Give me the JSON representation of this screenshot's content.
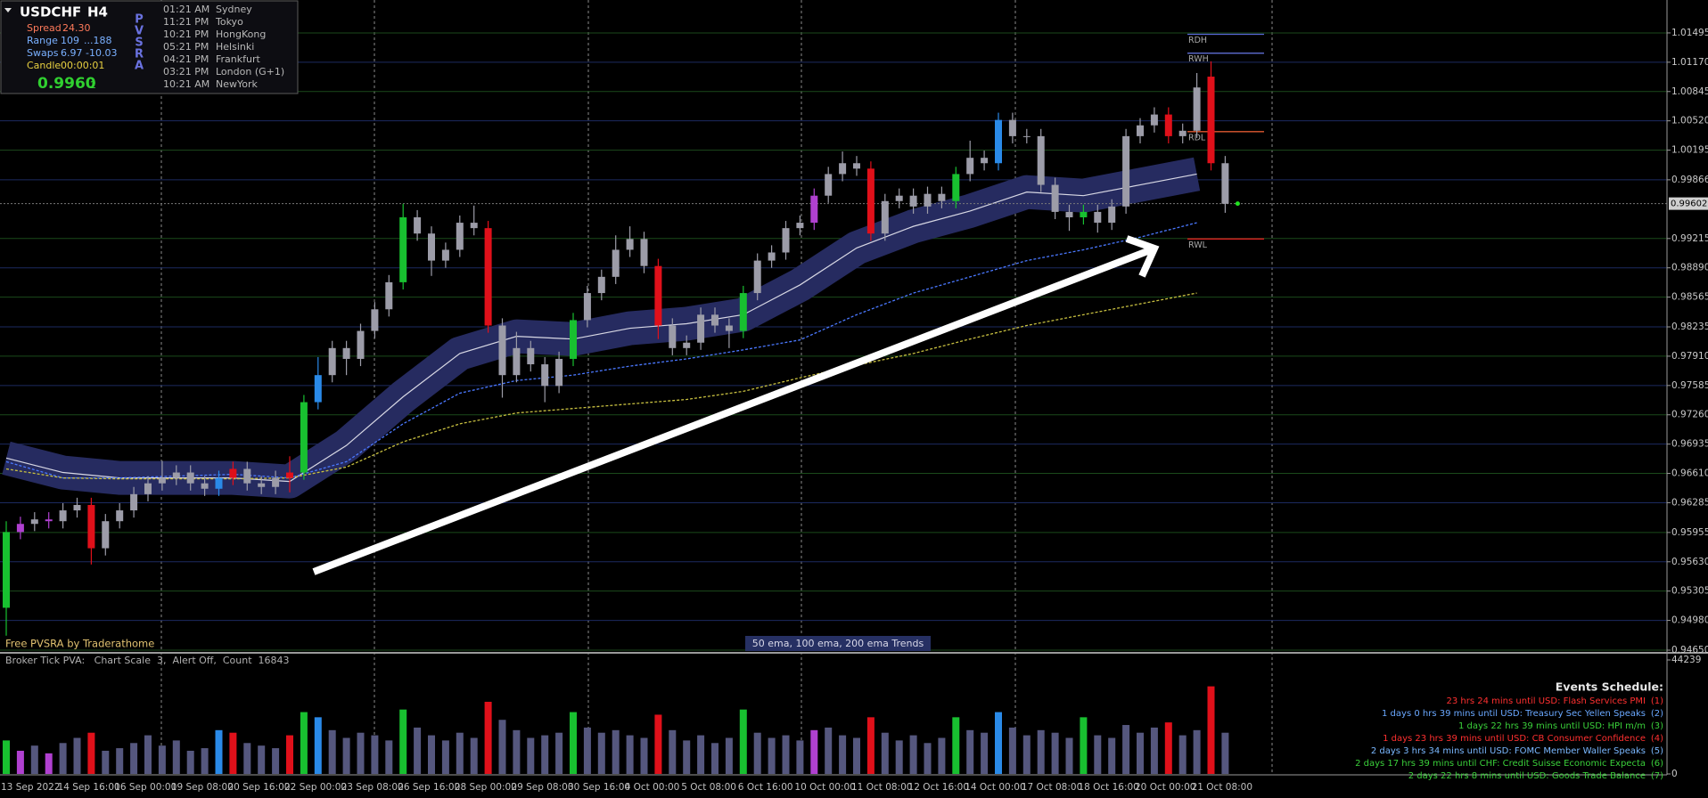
{
  "info_panel": {
    "symbol": "USDCHF",
    "timeframe": "H4",
    "spread_label": "Spread",
    "spread": "24.30",
    "range_label": "Range",
    "range": "109",
    "range_max": "...188",
    "swaps_label": "Swaps",
    "swap_long": "6.97",
    "swap_short": "-10.03",
    "candle_label": "Candle",
    "candle_timer": "00:00:01",
    "price": "0.9960",
    "price_digit": "2",
    "indicator_letters": [
      "P",
      "V",
      "S",
      "R",
      "A"
    ],
    "clocks": [
      {
        "time": "01:21 AM",
        "city": "Sydney"
      },
      {
        "time": "11:21 PM",
        "city": "Tokyo"
      },
      {
        "time": "10:21 PM",
        "city": "HongKong"
      },
      {
        "time": "05:21 PM",
        "city": "Helsinki"
      },
      {
        "time": "04:21 PM",
        "city": "Frankfurt"
      },
      {
        "time": "03:21 PM",
        "city": "London (G+1)"
      },
      {
        "time": "10:21 AM",
        "city": "NewYork"
      }
    ]
  },
  "footer": {
    "credit": "Free PVSRA by Traderathome",
    "trends_label": "50 ema, 100 ema, 200 ema Trends",
    "volume_pane_label": "Broker Tick PVA:   Chart Scale  3,  Alert Off,  Count  16843"
  },
  "events": {
    "title": "Events Schedule:",
    "items": [
      {
        "text": "23 hrs 24 mins until USD: Flash Services PMI",
        "number": "(1)",
        "color": "#ff3030"
      },
      {
        "text": "1 days 0 hrs 39 mins until USD: Treasury Sec Yellen Speaks",
        "number": "(2)",
        "color": "#6aa8ff"
      },
      {
        "text": "1 days 22 hrs 39 mins until USD: HPI m/m",
        "number": "(3)",
        "color": "#3ad03a"
      },
      {
        "text": "1 days 23 hrs 39 mins until USD: CB Consumer Confidence",
        "number": "(4)",
        "color": "#ff3030"
      },
      {
        "text": "2 days 3 hrs 34 mins until USD: FOMC Member Waller Speaks",
        "number": "(5)",
        "color": "#7ab8ff"
      },
      {
        "text": "2 days 17 hrs 39 mins until CHF: Credit Suisse Economic Expecta",
        "number": "(6)",
        "color": "#3ad03a"
      },
      {
        "text": "2 days 22 hrs 8 mins until USD: Goods Trade Balance",
        "number": "(7)",
        "color": "#3ad03a"
      }
    ]
  },
  "chart_data": {
    "type": "candlestick",
    "categories": [
      "13 Sep 2022",
      null,
      null,
      null,
      "14 Sep 16:00",
      null,
      null,
      null,
      "16 Sep 00:00",
      null,
      null,
      null,
      "19 Sep 08:00",
      null,
      null,
      null,
      "20 Sep 16:00",
      null,
      null,
      null,
      "22 Sep 00:00",
      null,
      null,
      null,
      "23 Sep 08:00",
      null,
      null,
      null,
      "26 Sep 16:00",
      null,
      null,
      null,
      "28 Sep 00:00",
      null,
      null,
      null,
      "29 Sep 08:00",
      null,
      null,
      null,
      "30 Sep 16:00",
      null,
      null,
      null,
      "4 Oct 00:00",
      null,
      null,
      null,
      "5 Oct 08:00",
      null,
      null,
      null,
      "6 Oct 16:00",
      null,
      null,
      null,
      "10 Oct 00:00",
      null,
      null,
      null,
      "11 Oct 08:00",
      null,
      null,
      null,
      "12 Oct 16:00",
      null,
      null,
      null,
      "14 Oct 00:00",
      null,
      null,
      null,
      "17 Oct 08:00",
      null,
      null,
      null,
      "18 Oct 16:00",
      null,
      null,
      null,
      "20 Oct 00:00",
      null,
      null,
      null,
      "21 Oct 08:00",
      null,
      null
    ],
    "ohlc": [
      [
        0.9512,
        0.9608,
        0.9481,
        0.9596
      ],
      [
        0.9596,
        0.9613,
        0.9588,
        0.9605
      ],
      [
        0.9605,
        0.9618,
        0.9597,
        0.961
      ],
      [
        0.961,
        0.9618,
        0.96,
        0.9608
      ],
      [
        0.9608,
        0.9628,
        0.96,
        0.962
      ],
      [
        0.962,
        0.9634,
        0.9612,
        0.9626
      ],
      [
        0.9626,
        0.9634,
        0.956,
        0.9578
      ],
      [
        0.9578,
        0.9616,
        0.957,
        0.9608
      ],
      [
        0.9608,
        0.9628,
        0.96,
        0.962
      ],
      [
        0.962,
        0.9646,
        0.9612,
        0.9638
      ],
      [
        0.9638,
        0.9658,
        0.963,
        0.965
      ],
      [
        0.965,
        0.9675,
        0.9642,
        0.9656
      ],
      [
        0.9656,
        0.967,
        0.9648,
        0.9662
      ],
      [
        0.9662,
        0.967,
        0.9642,
        0.965
      ],
      [
        0.965,
        0.9658,
        0.9636,
        0.9644
      ],
      [
        0.9644,
        0.9664,
        0.9636,
        0.9656
      ],
      [
        0.9656,
        0.9674,
        0.9648,
        0.9666
      ],
      [
        0.9666,
        0.9674,
        0.9642,
        0.965
      ],
      [
        0.965,
        0.9658,
        0.9638,
        0.9646
      ],
      [
        0.9646,
        0.9664,
        0.9638,
        0.9656
      ],
      [
        0.9656,
        0.968,
        0.964,
        0.9662
      ],
      [
        0.9662,
        0.9748,
        0.9654,
        0.974
      ],
      [
        0.974,
        0.979,
        0.9732,
        0.977
      ],
      [
        0.977,
        0.9808,
        0.9762,
        0.98
      ],
      [
        0.98,
        0.9808,
        0.977,
        0.9788
      ],
      [
        0.9788,
        0.9827,
        0.978,
        0.9819
      ],
      [
        0.9819,
        0.9851,
        0.9811,
        0.9843
      ],
      [
        0.9843,
        0.9881,
        0.9835,
        0.9873
      ],
      [
        0.9873,
        0.996,
        0.9865,
        0.9945
      ],
      [
        0.9945,
        0.9953,
        0.9919,
        0.9927
      ],
      [
        0.9927,
        0.9935,
        0.988,
        0.9897
      ],
      [
        0.9897,
        0.9917,
        0.9889,
        0.9909
      ],
      [
        0.9909,
        0.9947,
        0.9901,
        0.9939
      ],
      [
        0.9939,
        0.9958,
        0.9925,
        0.9933
      ],
      [
        0.9933,
        0.9941,
        0.9817,
        0.9825
      ],
      [
        0.9825,
        0.9833,
        0.9745,
        0.977
      ],
      [
        0.977,
        0.9818,
        0.9762,
        0.98
      ],
      [
        0.98,
        0.9808,
        0.9774,
        0.9782
      ],
      [
        0.9782,
        0.979,
        0.974,
        0.9758
      ],
      [
        0.9758,
        0.9796,
        0.975,
        0.9788
      ],
      [
        0.9788,
        0.9839,
        0.978,
        0.9831
      ],
      [
        0.9831,
        0.9869,
        0.9823,
        0.9861
      ],
      [
        0.9861,
        0.9887,
        0.9853,
        0.9879
      ],
      [
        0.9879,
        0.9925,
        0.9871,
        0.9909
      ],
      [
        0.9909,
        0.9935,
        0.9901,
        0.9921
      ],
      [
        0.9921,
        0.9929,
        0.9883,
        0.9891
      ],
      [
        0.9891,
        0.9899,
        0.981,
        0.9825
      ],
      [
        0.9825,
        0.9833,
        0.9792,
        0.98
      ],
      [
        0.98,
        0.9814,
        0.9792,
        0.9806
      ],
      [
        0.9806,
        0.9845,
        0.9798,
        0.9837
      ],
      [
        0.9837,
        0.9845,
        0.9817,
        0.9825
      ],
      [
        0.9825,
        0.9833,
        0.98,
        0.9819
      ],
      [
        0.9819,
        0.9869,
        0.9811,
        0.9861
      ],
      [
        0.9861,
        0.9905,
        0.9853,
        0.9897
      ],
      [
        0.9897,
        0.9914,
        0.9889,
        0.9906
      ],
      [
        0.9906,
        0.9941,
        0.9898,
        0.9933
      ],
      [
        0.9933,
        0.9947,
        0.9925,
        0.9939
      ],
      [
        0.9939,
        0.9977,
        0.9931,
        0.9969
      ],
      [
        0.9969,
        1.0001,
        0.9961,
        0.9993
      ],
      [
        0.9993,
        1.0018,
        0.9985,
        1.0005
      ],
      [
        1.0005,
        1.0013,
        0.9991,
        0.9999
      ],
      [
        0.9999,
        1.0007,
        0.9919,
        0.9927
      ],
      [
        0.9927,
        0.9971,
        0.9919,
        0.9963
      ],
      [
        0.9963,
        0.9977,
        0.9955,
        0.9969
      ],
      [
        0.9969,
        0.9977,
        0.9949,
        0.9957
      ],
      [
        0.9957,
        0.9979,
        0.9949,
        0.9971
      ],
      [
        0.9971,
        0.9979,
        0.9955,
        0.9963
      ],
      [
        0.9963,
        1.0001,
        0.9955,
        0.9993
      ],
      [
        0.9993,
        1.003,
        0.9985,
        1.0011
      ],
      [
        1.0011,
        1.0019,
        0.9997,
        1.0005
      ],
      [
        1.0005,
        1.0061,
        0.9997,
        1.0053
      ],
      [
        1.0053,
        1.0061,
        1.0027,
        1.0035
      ],
      [
        1.0035,
        1.0043,
        1.0027,
        1.0035
      ],
      [
        1.0035,
        1.0043,
        0.9973,
        0.9981
      ],
      [
        0.9981,
        0.9989,
        0.9943,
        0.9951
      ],
      [
        0.9951,
        0.9959,
        0.993,
        0.9945
      ],
      [
        0.9945,
        0.9959,
        0.9937,
        0.9951
      ],
      [
        0.9951,
        0.9959,
        0.9928,
        0.9939
      ],
      [
        0.9939,
        0.9965,
        0.9931,
        0.9957
      ],
      [
        0.9957,
        1.0043,
        0.9949,
        1.0035
      ],
      [
        1.0035,
        1.0055,
        1.0027,
        1.0047
      ],
      [
        1.0047,
        1.0067,
        1.0039,
        1.0059
      ],
      [
        1.0059,
        1.0067,
        1.0027,
        1.0035
      ],
      [
        1.0035,
        1.0049,
        1.0027,
        1.0041
      ],
      [
        1.0041,
        1.0105,
        1.0033,
        1.0089
      ],
      [
        1.0101,
        1.0118,
        0.9997,
        1.0005
      ],
      [
        1.0005,
        1.0013,
        0.995,
        0.996
      ]
    ],
    "candle_color": "#9c9ca8",
    "highlight_colors": [
      "#18c030",
      "#b040d0",
      null,
      "#b040d0",
      null,
      null,
      "#e0101a",
      null,
      null,
      null,
      null,
      null,
      null,
      null,
      null,
      "#2a8ae8",
      "#e0101a",
      null,
      null,
      null,
      "#e0101a",
      "#18c030",
      "#2a8ae8",
      null,
      null,
      null,
      null,
      null,
      "#18c030",
      null,
      null,
      null,
      null,
      null,
      "#e0101a",
      null,
      null,
      null,
      null,
      null,
      "#18c030",
      null,
      null,
      null,
      null,
      null,
      "#e0101a",
      null,
      null,
      null,
      null,
      null,
      "#18c030",
      null,
      null,
      null,
      null,
      "#b040d0",
      null,
      null,
      null,
      "#e0101a",
      null,
      null,
      null,
      null,
      null,
      "#18c030",
      null,
      null,
      "#2a8ae8",
      null,
      null,
      null,
      null,
      null,
      "#18c030",
      null,
      null,
      null,
      null,
      null,
      "#e0101a",
      null,
      null,
      "#e0101a",
      null
    ],
    "ylim": [
      0.9464,
      1.0186
    ],
    "yticks": [
      1.01495,
      {
        "value": 1.0117,
        "label": "1.01170"
      },
      1.00845,
      {
        "value": 1.0052,
        "label": "1.00520"
      },
      1.00195,
      0.99866,
      0.99215,
      {
        "value": 0.9889,
        "label": "0.98890"
      },
      0.98565,
      0.98235,
      {
        "value": 0.9791,
        "label": "0.97910"
      },
      0.97585,
      {
        "value": 0.9726,
        "label": "0.97260"
      },
      0.96935,
      {
        "value": 0.9661,
        "label": "0.96610"
      },
      0.96285,
      0.95955,
      {
        "value": 0.9563,
        "label": "0.95630"
      },
      0.95305,
      {
        "value": 0.9498,
        "label": "0.94980"
      },
      {
        "value": 0.9465,
        "label": "0.94650"
      }
    ],
    "grid": true,
    "grid_colors": [
      "#1b4a1b",
      "#1c2a60"
    ],
    "band_color": "#262b60",
    "ema": [
      {
        "color": "#d8d8e4",
        "band": true,
        "dash": "none",
        "x": [
          0,
          4,
          8,
          12,
          16,
          20,
          24,
          28,
          32,
          36,
          40,
          44,
          48,
          52,
          56,
          60,
          64,
          68,
          72,
          76,
          80,
          84
        ],
        "values": [
          0.9678,
          0.9662,
          0.9656,
          0.9656,
          0.9656,
          0.9652,
          0.9692,
          0.9746,
          0.9794,
          0.9813,
          0.981,
          0.9822,
          0.9827,
          0.9837,
          0.987,
          0.9911,
          0.9935,
          0.9952,
          0.9973,
          0.9969,
          0.9981,
          0.9993
        ]
      },
      {
        "color": "#4a78ff",
        "band": false,
        "dash": "3 2",
        "x": [
          0,
          4,
          8,
          12,
          16,
          20,
          24,
          28,
          32,
          36,
          40,
          44,
          48,
          52,
          56,
          60,
          64,
          68,
          72,
          76,
          80,
          84
        ],
        "values": [
          0.9674,
          0.9656,
          0.9656,
          0.9658,
          0.966,
          0.9656,
          0.9674,
          0.9716,
          0.975,
          0.9764,
          0.977,
          0.978,
          0.9788,
          0.9798,
          0.9809,
          0.9837,
          0.9861,
          0.9879,
          0.9897,
          0.9909,
          0.9923,
          0.9939
        ]
      },
      {
        "color": "#c8c040",
        "band": false,
        "dash": "3 2",
        "x": [
          0,
          4,
          8,
          12,
          16,
          20,
          24,
          28,
          32,
          36,
          40,
          44,
          48,
          52,
          56,
          60,
          64,
          68,
          72,
          76,
          80,
          84
        ],
        "values": [
          0.9666,
          0.9656,
          0.9655,
          0.9655,
          0.9655,
          0.9656,
          0.9668,
          0.9696,
          0.9716,
          0.9728,
          0.9733,
          0.9738,
          0.9743,
          0.9752,
          0.9767,
          0.9781,
          0.9794,
          0.981,
          0.9825,
          0.9837,
          0.9849,
          0.9861
        ]
      }
    ],
    "levels": [
      {
        "label": "RDH",
        "value": 1.0148,
        "color": "#5868d8"
      },
      {
        "label": "RWH",
        "value": 1.0127,
        "color": "#6878e8"
      },
      {
        "label": "RDL",
        "value": 1.004,
        "color": "#e05a30"
      },
      {
        "label": "RWL",
        "value": 0.9921,
        "color": "#e02020"
      }
    ],
    "last_price": 0.99602,
    "volume": {
      "color": "#55577e",
      "ylim": [
        0,
        44239
      ],
      "yticks": [
        44239,
        0
      ],
      "values": [
        13000,
        9000,
        11000,
        8000,
        12000,
        14000,
        16000,
        9000,
        10000,
        12000,
        15000,
        11000,
        13000,
        9000,
        10000,
        17000,
        16000,
        12000,
        11000,
        10000,
        15000,
        24000,
        22000,
        17000,
        14000,
        16000,
        15000,
        13000,
        25000,
        18000,
        15000,
        13000,
        16000,
        14000,
        28000,
        21000,
        17000,
        14000,
        15000,
        16000,
        24000,
        18000,
        16000,
        17000,
        15000,
        14000,
        23000,
        17000,
        13000,
        15000,
        12000,
        14000,
        25000,
        16000,
        14000,
        15000,
        13000,
        17000,
        18000,
        15000,
        14000,
        22000,
        16000,
        13000,
        15000,
        12000,
        14000,
        22000,
        17000,
        16000,
        24000,
        18000,
        15000,
        17000,
        16000,
        14000,
        22000,
        15000,
        14000,
        19000,
        16000,
        18000,
        20000,
        15000,
        17000,
        34000,
        16000
      ]
    }
  }
}
